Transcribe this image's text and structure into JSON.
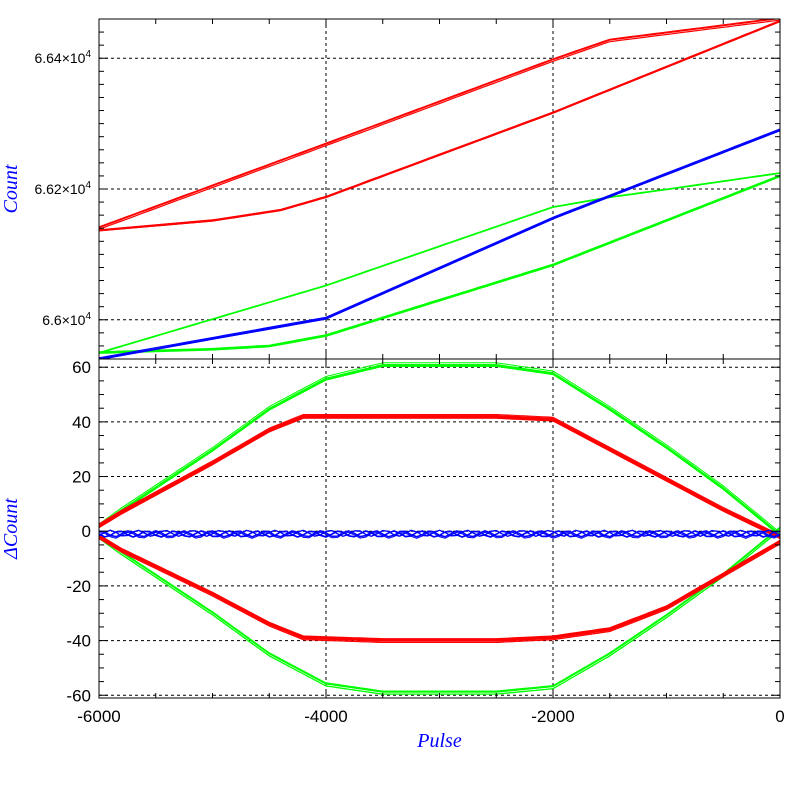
{
  "chart_data": [
    {
      "type": "line",
      "panel": "top",
      "xlabel": "",
      "ylabel": "Count",
      "xlim": [
        -6000,
        0
      ],
      "ylim": [
        65940,
        66460
      ],
      "grid": true,
      "y_ticks": [
        {
          "value": 66000,
          "mantissa": "6.6",
          "exp": "4"
        },
        {
          "value": 66200,
          "mantissa": "6.62",
          "exp": "4"
        },
        {
          "value": 66400,
          "mantissa": "6.64",
          "exp": "4"
        }
      ],
      "series": [
        {
          "color": "#ff0000",
          "curves": [
            {
              "x": [
                -6000,
                -4000,
                -2000,
                -1500,
                0
              ],
              "y": [
                66140,
                66268,
                66397,
                66427,
                66460
              ]
            },
            {
              "x": [
                -6000,
                -5000,
                -4400,
                -4000,
                -2000,
                0
              ],
              "y": [
                66137,
                66152,
                66168,
                66188,
                66317,
                66457
              ]
            }
          ]
        },
        {
          "color": "#00ff00",
          "curves": [
            {
              "x": [
                -6000,
                -4000,
                -2000,
                -1500,
                -1000,
                0
              ],
              "y": [
                65950,
                66053,
                66173,
                66188,
                66200,
                66225
              ]
            },
            {
              "x": [
                -6000,
                -5000,
                -4500,
                -4000,
                -2000,
                0
              ],
              "y": [
                65950,
                65955,
                65960,
                65976,
                66084,
                66220
              ]
            }
          ]
        },
        {
          "color": "#0000ff",
          "curves": [
            {
              "x": [
                -6000,
                -4000,
                -2000,
                0
              ],
              "y": [
                65940,
                66002,
                66155,
                66290
              ]
            }
          ]
        }
      ]
    },
    {
      "type": "line",
      "panel": "bottom",
      "xlabel": "Pulse",
      "ylabel": "ΔCount",
      "xlim": [
        -6000,
        0
      ],
      "ylim": [
        -61,
        63
      ],
      "grid": true,
      "x_ticks": [
        -6000,
        -4000,
        -2000,
        0
      ],
      "y_ticks": [
        -60,
        -40,
        -20,
        0,
        20,
        40,
        60
      ],
      "series": [
        {
          "color": "#00ff00",
          "curves": [
            {
              "x": [
                -6000,
                -5800,
                -5000,
                -4500,
                -4000,
                -3500,
                -2500,
                -2000,
                -1500,
                -1000,
                -500,
                0
              ],
              "y": [
                2,
                8,
                30,
                45,
                56,
                61,
                61,
                58,
                45,
                31,
                16,
                -1
              ]
            },
            {
              "x": [
                -6000,
                -5800,
                -5000,
                -4500,
                -4000,
                -3500,
                -2500,
                -2000,
                -1500,
                -1000,
                -500,
                0
              ],
              "y": [
                -2,
                -8,
                -30,
                -45,
                -56,
                -59,
                -59,
                -57,
                -45,
                -31,
                -16,
                1
              ]
            }
          ]
        },
        {
          "color": "#ff0000",
          "curves": [
            {
              "x": [
                -6000,
                -5800,
                -5000,
                -4500,
                -4200,
                -3500,
                -2500,
                -2000,
                -1500,
                -1000,
                -500,
                0
              ],
              "y": [
                2,
                7,
                25,
                37,
                42,
                42,
                42,
                41,
                30,
                19,
                8,
                -2
              ]
            },
            {
              "x": [
                -6000,
                -5800,
                -5000,
                -4500,
                -4200,
                -3500,
                -2500,
                -2000,
                -1500,
                -1000,
                -500,
                0
              ],
              "y": [
                -2,
                -7,
                -23,
                -34,
                -39,
                -40,
                -40,
                -39,
                -36,
                -28,
                -16,
                -4
              ]
            }
          ]
        },
        {
          "color": "#0000ff",
          "curves": [
            {
              "x": [
                -6000,
                -3000,
                0
              ],
              "y": [
                -1,
                -1,
                -1
              ]
            }
          ]
        }
      ]
    }
  ]
}
